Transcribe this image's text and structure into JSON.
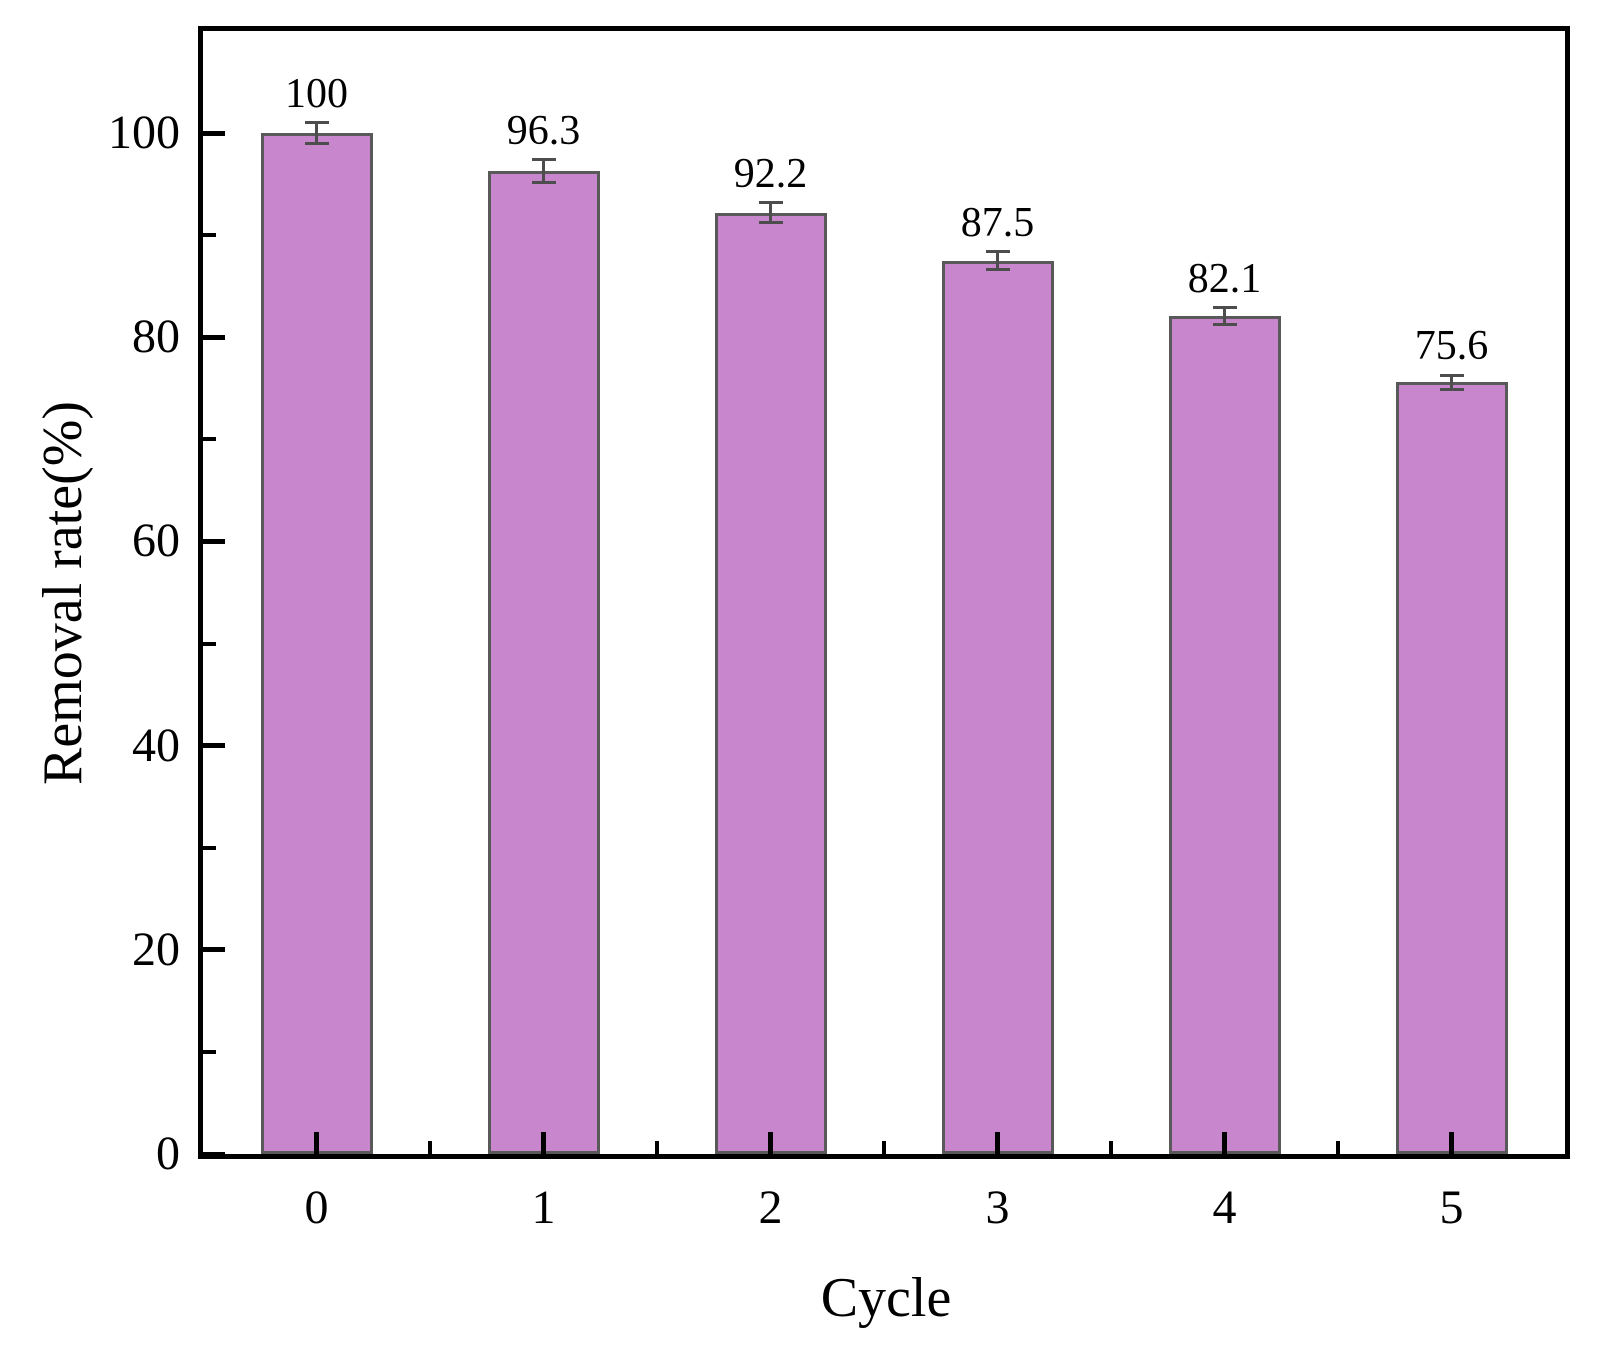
{
  "chart_data": {
    "type": "bar",
    "title": "",
    "xlabel": "Cycle",
    "ylabel": "Removal rate(%)",
    "categories": [
      "0",
      "1",
      "2",
      "3",
      "4",
      "5"
    ],
    "values": [
      100,
      96.3,
      92.2,
      87.5,
      82.1,
      75.6
    ],
    "value_labels": [
      "100",
      "96.3",
      "92.2",
      "87.5",
      "82.1",
      "75.6"
    ],
    "errors": [
      1.0,
      1.1,
      1.0,
      0.9,
      0.8,
      0.7
    ],
    "ylim": [
      0,
      110
    ],
    "yticks_major": [
      0,
      20,
      40,
      60,
      80,
      100
    ],
    "yticks_minor": [
      10,
      30,
      50,
      70,
      90
    ],
    "grid": "off",
    "legend": "none",
    "bar_width_fraction": 0.495,
    "colors": {
      "bar_fill": "#C886CC",
      "bar_border": "#595959",
      "error_bar": "#4D4D4D",
      "axis": "#000000",
      "background": "#FFFFFF",
      "text": "#000000"
    }
  }
}
